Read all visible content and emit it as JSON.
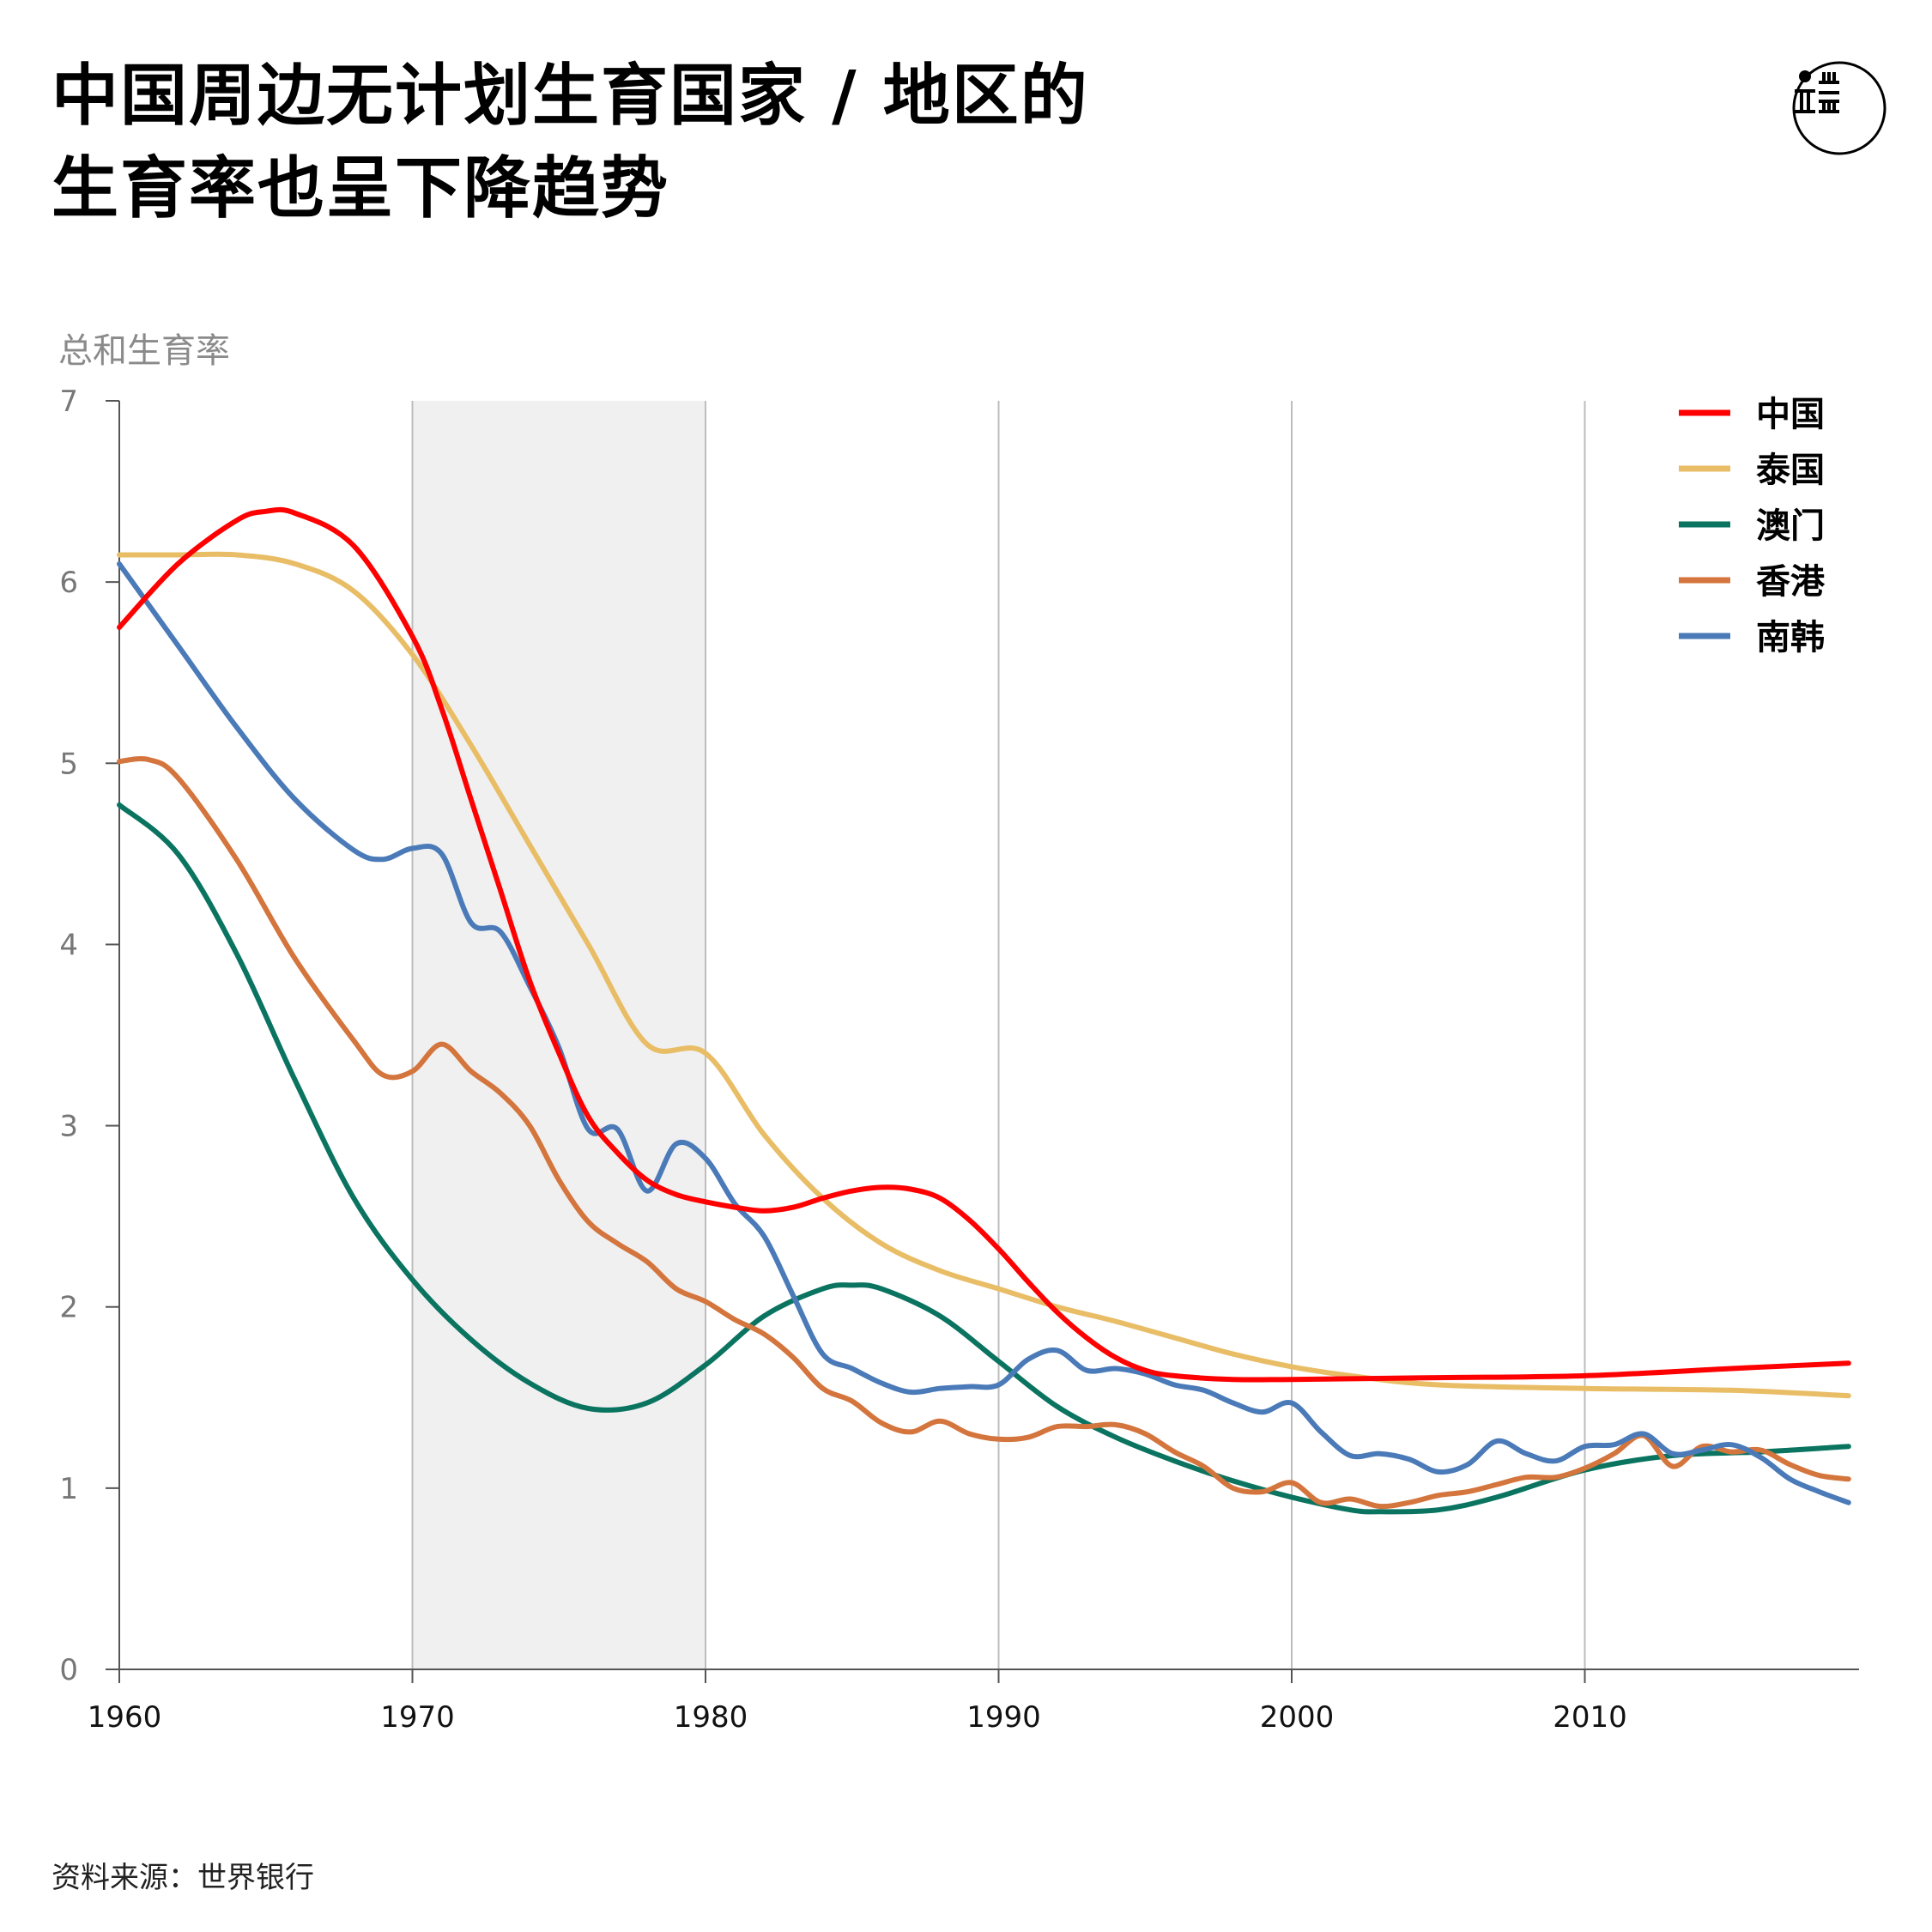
{
  "header": {
    "title_line1": "中国周边无计划生育国家 / 地区的",
    "title_line2": "生育率也呈下降趋势",
    "logo_icon": "theinitium-logo-icon"
  },
  "footer": {
    "source": "资料来源：世界银行"
  },
  "colors": {
    "china": "#ff0000",
    "thailand": "#e8bd66",
    "macau": "#0a7460",
    "hongkong": "#d4753d",
    "korea": "#4a7ab8",
    "shade": "#f0f0f0",
    "grid": "#bdbdbd",
    "axis": "#555555",
    "ticktext": "#777777"
  },
  "chart_data": {
    "type": "line",
    "ylabel": "总和生育率",
    "xlabel": "",
    "xlim": [
      1960,
      2019
    ],
    "ylim": [
      0,
      7
    ],
    "x_ticks": [
      1960,
      1970,
      1980,
      1990,
      2000,
      2010
    ],
    "y_ticks": [
      0,
      1,
      2,
      3,
      4,
      5,
      6,
      7
    ],
    "grid": "vertical",
    "shaded_range": [
      1970,
      1980
    ],
    "legend_position": "top-right",
    "series": [
      {
        "name": "中国",
        "color_key": "china",
        "x": [
          1960,
          1962,
          1964,
          1965,
          1966,
          1968,
          1970,
          1971,
          1972,
          1973,
          1974,
          1975,
          1976,
          1977,
          1978,
          1979,
          1980,
          1981,
          1982,
          1983,
          1984,
          1985,
          1986,
          1987,
          1988,
          1989,
          1990,
          1991,
          1992,
          1993,
          1994,
          1995,
          1996,
          1998,
          2000,
          2005,
          2010,
          2015,
          2019
        ],
        "y": [
          5.75,
          6.1,
          6.34,
          6.39,
          6.38,
          6.2,
          5.7,
          5.3,
          4.8,
          4.3,
          3.8,
          3.4,
          3.05,
          2.85,
          2.7,
          2.62,
          2.58,
          2.55,
          2.53,
          2.55,
          2.6,
          2.64,
          2.66,
          2.65,
          2.6,
          2.48,
          2.32,
          2.14,
          1.97,
          1.83,
          1.72,
          1.65,
          1.62,
          1.6,
          1.6,
          1.61,
          1.62,
          1.66,
          1.69
        ]
      },
      {
        "name": "泰国",
        "color_key": "thailand",
        "x": [
          1960,
          1962,
          1964,
          1966,
          1968,
          1970,
          1972,
          1974,
          1976,
          1978,
          1980,
          1982,
          1984,
          1986,
          1988,
          1990,
          1992,
          1994,
          1996,
          1998,
          2000,
          2002,
          2005,
          2010,
          2015,
          2019
        ],
        "y": [
          6.15,
          6.15,
          6.15,
          6.1,
          5.95,
          5.6,
          5.1,
          4.55,
          4.0,
          3.45,
          3.4,
          2.95,
          2.6,
          2.35,
          2.2,
          2.1,
          2.0,
          1.92,
          1.83,
          1.74,
          1.67,
          1.62,
          1.57,
          1.55,
          1.54,
          1.51
        ]
      },
      {
        "name": "澳门",
        "color_key": "macau",
        "x": [
          1960,
          1962,
          1964,
          1966,
          1968,
          1970,
          1972,
          1974,
          1976,
          1978,
          1980,
          1982,
          1984,
          1985,
          1986,
          1988,
          1990,
          1992,
          1994,
          1996,
          1998,
          2000,
          2002,
          2003,
          2005,
          2007,
          2010,
          2013,
          2016,
          2019
        ],
        "y": [
          4.77,
          4.5,
          3.95,
          3.25,
          2.6,
          2.15,
          1.82,
          1.58,
          1.44,
          1.47,
          1.68,
          1.95,
          2.1,
          2.12,
          2.1,
          1.95,
          1.7,
          1.45,
          1.28,
          1.15,
          1.04,
          0.95,
          0.88,
          0.87,
          0.88,
          0.95,
          1.1,
          1.18,
          1.2,
          1.23
        ]
      },
      {
        "name": "香港",
        "color_key": "hongkong",
        "x": [
          1960,
          1961,
          1962,
          1964,
          1966,
          1968,
          1969,
          1970,
          1971,
          1972,
          1973,
          1974,
          1975,
          1976,
          1977,
          1978,
          1979,
          1980,
          1981,
          1982,
          1983,
          1984,
          1985,
          1986,
          1987,
          1988,
          1989,
          1990,
          1991,
          1992,
          1993,
          1994,
          1995,
          1996,
          1997,
          1998,
          1999,
          2000,
          2001,
          2002,
          2003,
          2004,
          2005,
          2006,
          2007,
          2008,
          2009,
          2010,
          2011,
          2012,
          2013,
          2014,
          2015,
          2016,
          2017,
          2018,
          2019
        ],
        "y": [
          5.01,
          5.02,
          4.92,
          4.47,
          3.92,
          3.47,
          3.28,
          3.3,
          3.45,
          3.3,
          3.18,
          3.0,
          2.7,
          2.47,
          2.35,
          2.25,
          2.1,
          2.03,
          1.93,
          1.85,
          1.72,
          1.55,
          1.48,
          1.36,
          1.31,
          1.37,
          1.3,
          1.27,
          1.28,
          1.34,
          1.34,
          1.35,
          1.3,
          1.2,
          1.12,
          1.0,
          0.98,
          1.03,
          0.92,
          0.94,
          0.9,
          0.92,
          0.96,
          0.98,
          1.02,
          1.06,
          1.06,
          1.11,
          1.19,
          1.29,
          1.12,
          1.23,
          1.2,
          1.21,
          1.13,
          1.07,
          1.05
        ]
      },
      {
        "name": "南韩",
        "color_key": "korea",
        "x": [
          1960,
          1962,
          1964,
          1966,
          1968,
          1969,
          1970,
          1971,
          1972,
          1973,
          1974,
          1975,
          1976,
          1977,
          1978,
          1979,
          1980,
          1981,
          1982,
          1983,
          1984,
          1985,
          1986,
          1987,
          1988,
          1989,
          1990,
          1991,
          1992,
          1993,
          1994,
          1995,
          1996,
          1997,
          1998,
          1999,
          2000,
          2001,
          2002,
          2003,
          2004,
          2005,
          2006,
          2007,
          2008,
          2009,
          2010,
          2011,
          2012,
          2013,
          2014,
          2015,
          2016,
          2017,
          2018,
          2019
        ],
        "y": [
          6.1,
          5.65,
          5.2,
          4.8,
          4.52,
          4.47,
          4.53,
          4.5,
          4.12,
          4.07,
          3.77,
          3.43,
          2.98,
          2.98,
          2.64,
          2.9,
          2.82,
          2.57,
          2.39,
          2.06,
          1.74,
          1.66,
          1.58,
          1.53,
          1.55,
          1.56,
          1.57,
          1.71,
          1.76,
          1.65,
          1.66,
          1.63,
          1.57,
          1.54,
          1.47,
          1.42,
          1.47,
          1.31,
          1.18,
          1.19,
          1.16,
          1.09,
          1.13,
          1.26,
          1.19,
          1.15,
          1.23,
          1.24,
          1.3,
          1.19,
          1.21,
          1.24,
          1.17,
          1.05,
          0.98,
          0.92
        ]
      }
    ]
  }
}
